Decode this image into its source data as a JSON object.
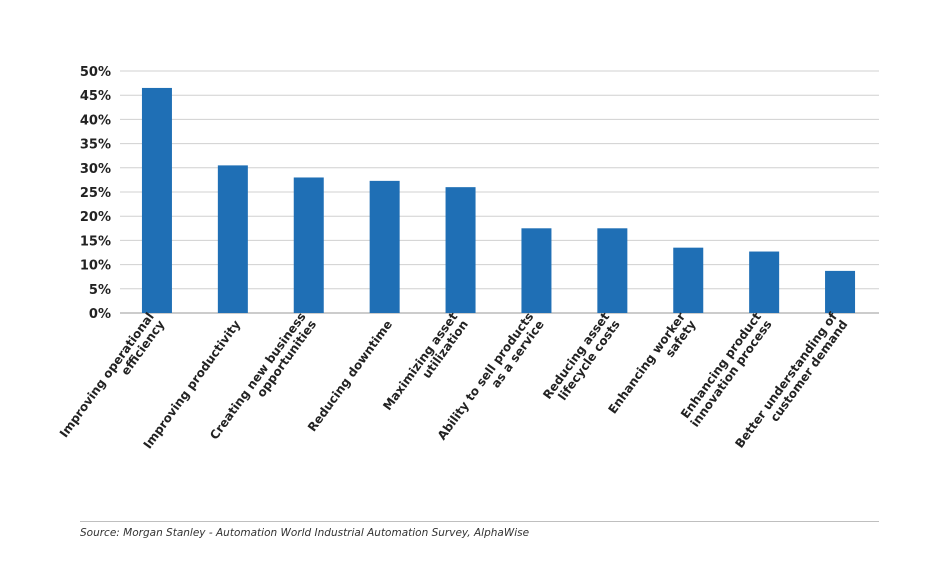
{
  "chart_data": {
    "type": "bar",
    "categories": [
      [
        "Improving operational",
        "efficiency"
      ],
      [
        "Improving productivity"
      ],
      [
        "Creating new business",
        "opportunities"
      ],
      [
        "Reducing downtime"
      ],
      [
        "Maximizing asset",
        "utilization"
      ],
      [
        "Ability to sell products",
        "as a service"
      ],
      [
        "Reducing asset",
        "lifecycle costs"
      ],
      [
        "Enhancing worker",
        "safety"
      ],
      [
        "Enhancing product",
        "innovation process"
      ],
      [
        "Better understanding of",
        "customer demand"
      ]
    ],
    "values": [
      46.5,
      30.5,
      28,
      27.3,
      26,
      17.5,
      17.5,
      13.5,
      12.7,
      8.7
    ],
    "ylim": [
      0,
      50
    ],
    "yticks": [
      "0%",
      "5%",
      "10%",
      "15%",
      "20%",
      "25%",
      "30%",
      "35%",
      "40%",
      "45%",
      "50%"
    ],
    "grid": true,
    "bar_color": "#1f6fb5"
  },
  "source": "Source: Morgan Stanley - Automation World Industrial Automation Survey, AlphaWise"
}
